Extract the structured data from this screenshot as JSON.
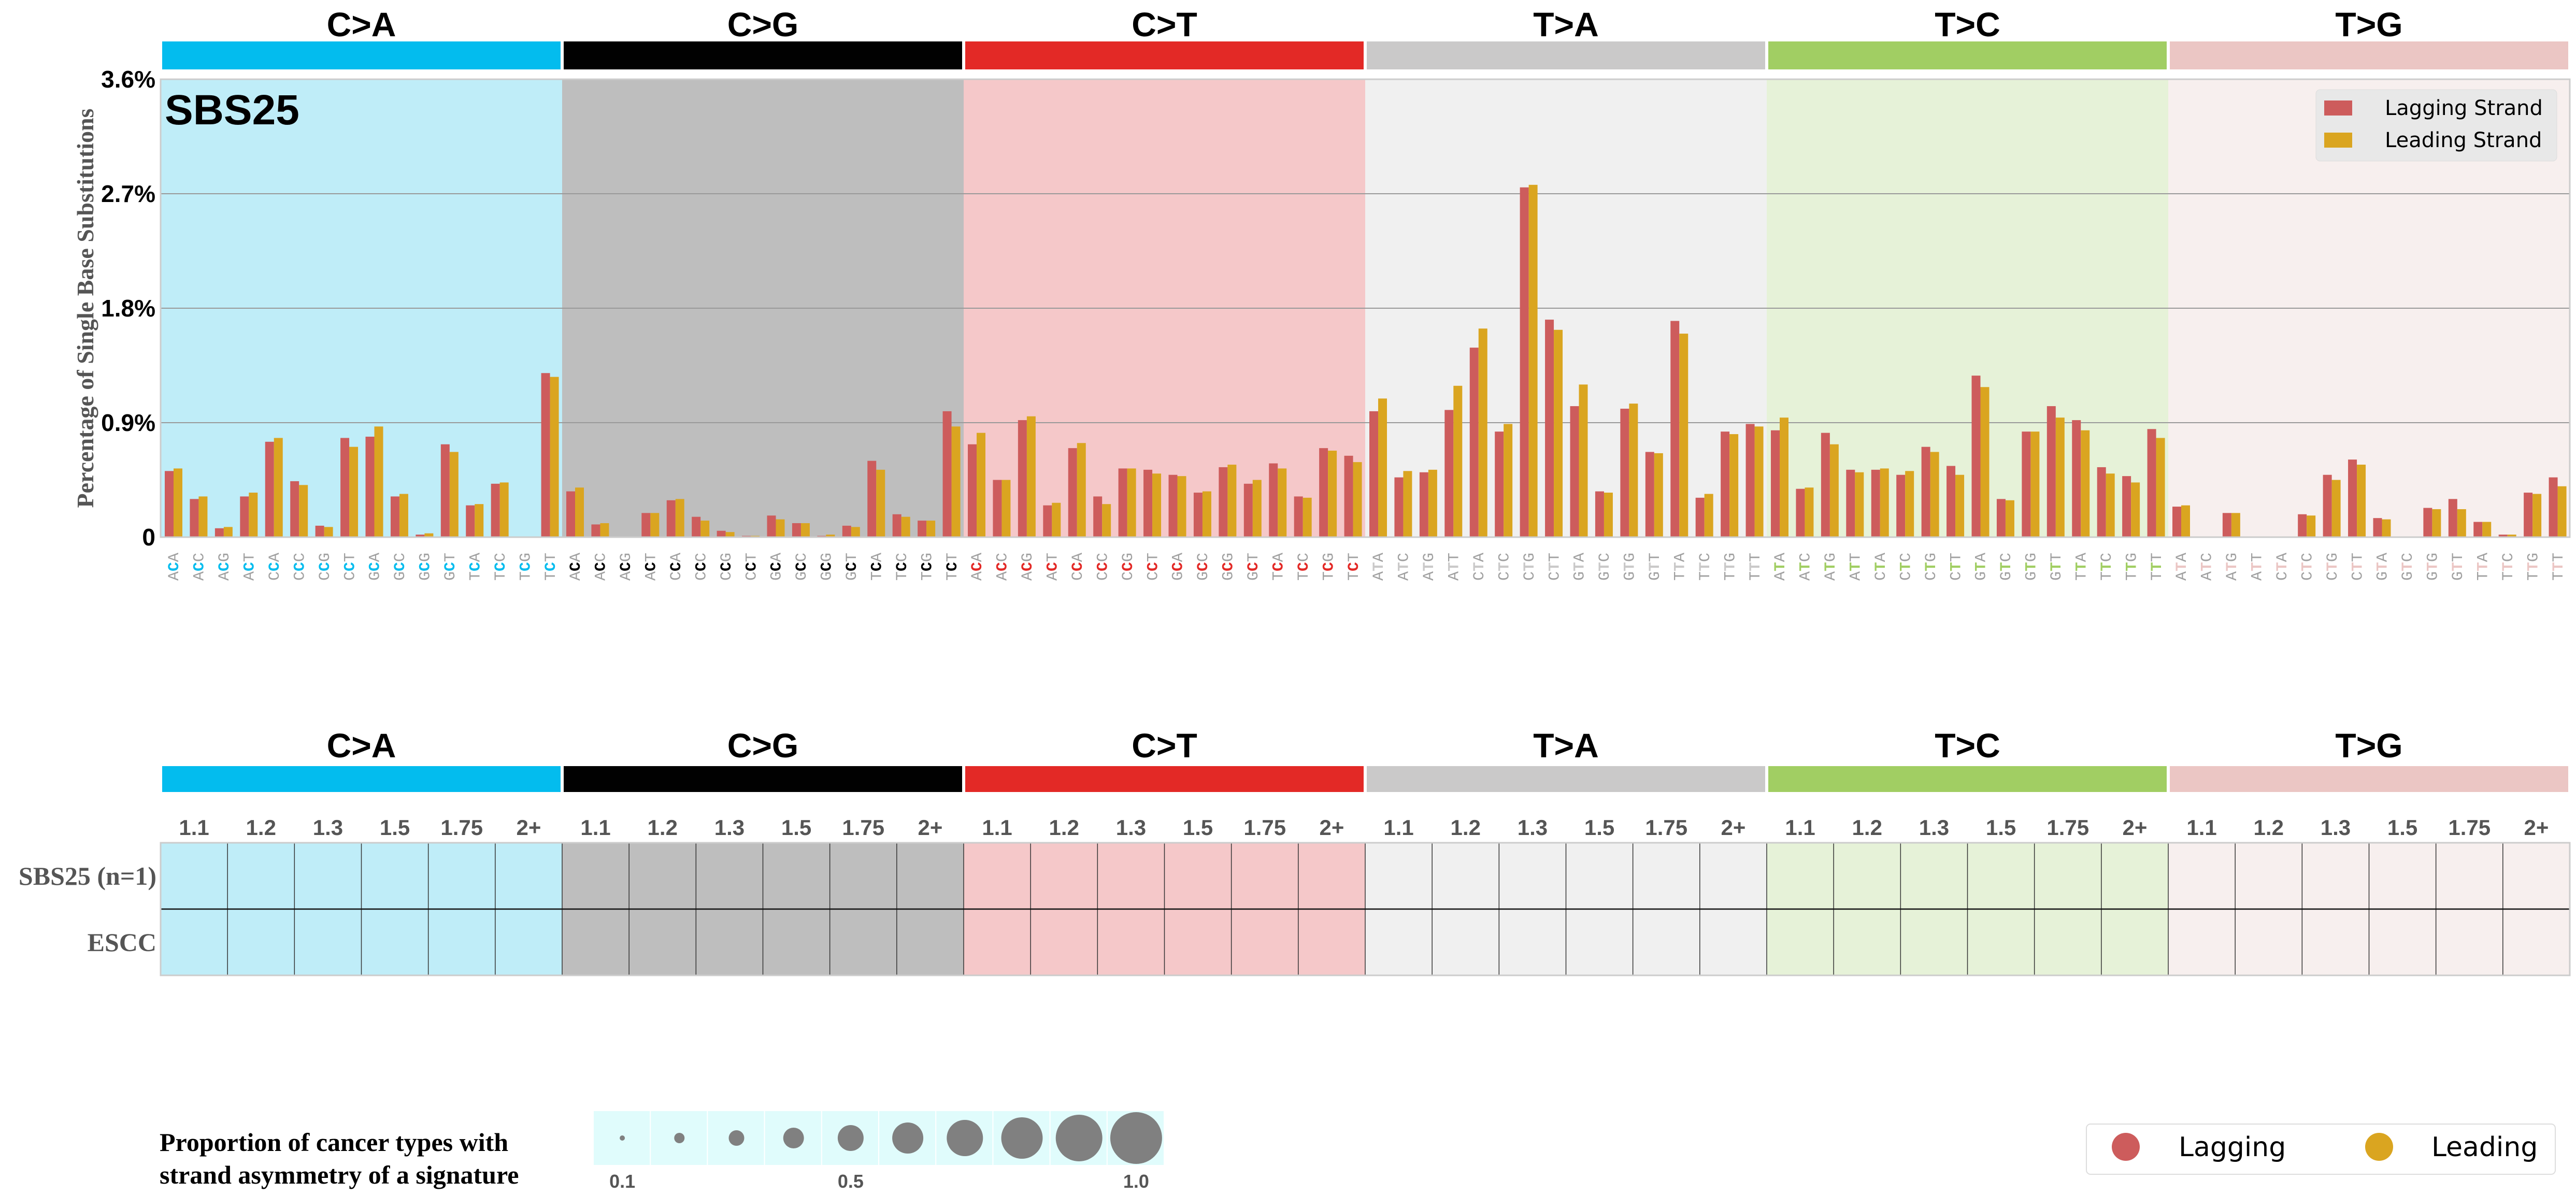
{
  "chart_data": {
    "type": "bar",
    "title": "SBS25",
    "ylabel": "Percentage of Single Base Substitutions",
    "ylim": [
      0,
      3.6
    ],
    "yticks": [
      "0",
      "0.9%",
      "1.8%",
      "2.7%",
      "3.6%"
    ],
    "ytick_values": [
      0,
      0.9,
      1.8,
      2.7,
      3.6
    ],
    "grid": true,
    "legend": {
      "placement": "top-right",
      "entries": [
        "Lagging Strand",
        "Leading Strand"
      ]
    },
    "series_colors": {
      "lagging": "#cd5c5c",
      "leading": "#daa520"
    },
    "groups": [
      {
        "name": "C>A",
        "bar_color": "#03bcee",
        "bg_color": "#bfedf8",
        "mid_color": "#03bcee",
        "contexts": [
          "ACA",
          "ACC",
          "ACG",
          "ACT",
          "CCA",
          "CCC",
          "CCG",
          "CCT",
          "GCA",
          "GCC",
          "GCG",
          "GCT",
          "TCA",
          "TCC",
          "TCG",
          "TCT"
        ],
        "lagging": [
          0.52,
          0.3,
          0.07,
          0.32,
          0.75,
          0.44,
          0.09,
          0.78,
          0.79,
          0.32,
          0.02,
          0.73,
          0.25,
          0.42,
          0,
          1.29
        ],
        "leading": [
          0.54,
          0.32,
          0.08,
          0.35,
          0.78,
          0.41,
          0.08,
          0.71,
          0.87,
          0.34,
          0.03,
          0.67,
          0.26,
          0.43,
          0,
          1.26
        ]
      },
      {
        "name": "C>G",
        "bar_color": "#010101",
        "bg_color": "#bebebe",
        "mid_color": "#010101",
        "contexts": [
          "ACA",
          "ACC",
          "ACG",
          "ACT",
          "CCA",
          "CCC",
          "CCG",
          "CCT",
          "GCA",
          "GCC",
          "GCG",
          "GCT",
          "TCA",
          "TCC",
          "TCG",
          "TCT"
        ],
        "lagging": [
          0.36,
          0.1,
          0,
          0.19,
          0.29,
          0.16,
          0.05,
          0.01,
          0.17,
          0.11,
          0.01,
          0.09,
          0.6,
          0.18,
          0.13,
          0.99
        ],
        "leading": [
          0.39,
          0.11,
          0,
          0.19,
          0.3,
          0.13,
          0.04,
          0.01,
          0.14,
          0.11,
          0.02,
          0.08,
          0.53,
          0.16,
          0.13,
          0.87
        ]
      },
      {
        "name": "C>T",
        "bar_color": "#e32926",
        "bg_color": "#f5c8c9",
        "mid_color": "#e32926",
        "contexts": [
          "ACA",
          "ACC",
          "ACG",
          "ACT",
          "CCA",
          "CCC",
          "CCG",
          "CCT",
          "GCA",
          "GCC",
          "GCG",
          "GCT",
          "TCA",
          "TCC",
          "TCG",
          "TCT"
        ],
        "lagging": [
          0.73,
          0.45,
          0.92,
          0.25,
          0.7,
          0.32,
          0.54,
          0.53,
          0.49,
          0.35,
          0.55,
          0.42,
          0.58,
          0.32,
          0.7,
          0.64
        ],
        "leading": [
          0.82,
          0.45,
          0.95,
          0.27,
          0.74,
          0.26,
          0.54,
          0.5,
          0.48,
          0.36,
          0.57,
          0.45,
          0.54,
          0.31,
          0.68,
          0.59
        ]
      },
      {
        "name": "T>A",
        "bar_color": "#cac9c9",
        "bg_color": "#f0f0f0",
        "mid_color": "#cac9c9",
        "contexts": [
          "ATA",
          "ATC",
          "ATG",
          "ATT",
          "CTA",
          "CTC",
          "CTG",
          "CTT",
          "GTA",
          "GTC",
          "GTG",
          "GTT",
          "TTA",
          "TTC",
          "TTG",
          "TTT"
        ],
        "lagging": [
          0.99,
          0.47,
          0.51,
          1.0,
          1.49,
          0.83,
          2.75,
          1.71,
          1.03,
          0.36,
          1.01,
          0.67,
          1.7,
          0.31,
          0.83,
          0.89
        ],
        "leading": [
          1.09,
          0.52,
          0.53,
          1.19,
          1.64,
          0.89,
          2.77,
          1.63,
          1.2,
          0.35,
          1.05,
          0.66,
          1.6,
          0.34,
          0.81,
          0.87
        ]
      },
      {
        "name": "T>C",
        "bar_color": "#a1ce63",
        "bg_color": "#e6f2d8",
        "mid_color": "#a1ce63",
        "contexts": [
          "ATA",
          "ATC",
          "ATG",
          "ATT",
          "CTA",
          "CTC",
          "CTG",
          "CTT",
          "GTA",
          "GTC",
          "GTG",
          "GTT",
          "TTA",
          "TTC",
          "TTG",
          "TTT"
        ],
        "lagging": [
          0.84,
          0.38,
          0.82,
          0.53,
          0.53,
          0.49,
          0.71,
          0.56,
          1.27,
          0.3,
          0.83,
          1.03,
          0.92,
          0.55,
          0.48,
          0.85
        ],
        "leading": [
          0.94,
          0.39,
          0.73,
          0.51,
          0.54,
          0.52,
          0.67,
          0.49,
          1.18,
          0.29,
          0.83,
          0.94,
          0.84,
          0.5,
          0.43,
          0.78
        ]
      },
      {
        "name": "T>G",
        "bar_color": "#ebc6c4",
        "bg_color": "#f7efee",
        "mid_color": "#ebc6c4",
        "contexts": [
          "ATA",
          "ATC",
          "ATG",
          "ATT",
          "CTA",
          "CTC",
          "CTG",
          "CTT",
          "GTA",
          "GTC",
          "GTG",
          "GTT",
          "TTA",
          "TTC",
          "TTG",
          "TTT"
        ],
        "lagging": [
          0.24,
          0,
          0.19,
          0,
          0,
          0.18,
          0.49,
          0.61,
          0.15,
          0,
          0.23,
          0.3,
          0.12,
          0.02,
          0.35,
          0.47
        ],
        "leading": [
          0.25,
          0,
          0.19,
          0,
          0,
          0.17,
          0.45,
          0.57,
          0.14,
          0,
          0.22,
          0.22,
          0.12,
          0.02,
          0.34,
          0.4
        ]
      }
    ]
  },
  "asymmetry_table": {
    "thresholds": [
      "1.1",
      "1.2",
      "1.3",
      "1.5",
      "1.75",
      "2+"
    ],
    "rows": [
      "SBS25 (n=1)",
      "ESCC"
    ]
  },
  "bubble_legend": {
    "title_line1": "Proportion of cancer types with",
    "title_line2": "strand asymmetry of a signature",
    "values": [
      0.1,
      0.2,
      0.3,
      0.4,
      0.5,
      0.6,
      0.7,
      0.8,
      0.9,
      1.0
    ],
    "labels": [
      "0.1",
      "0.5",
      "1.0"
    ],
    "label_values": [
      0.1,
      0.5,
      1.0
    ],
    "bg_color": "#e0fcfc",
    "bubble_color": "#808080"
  },
  "strand_legend": {
    "lagging": "Lagging",
    "leading": "Leading"
  }
}
